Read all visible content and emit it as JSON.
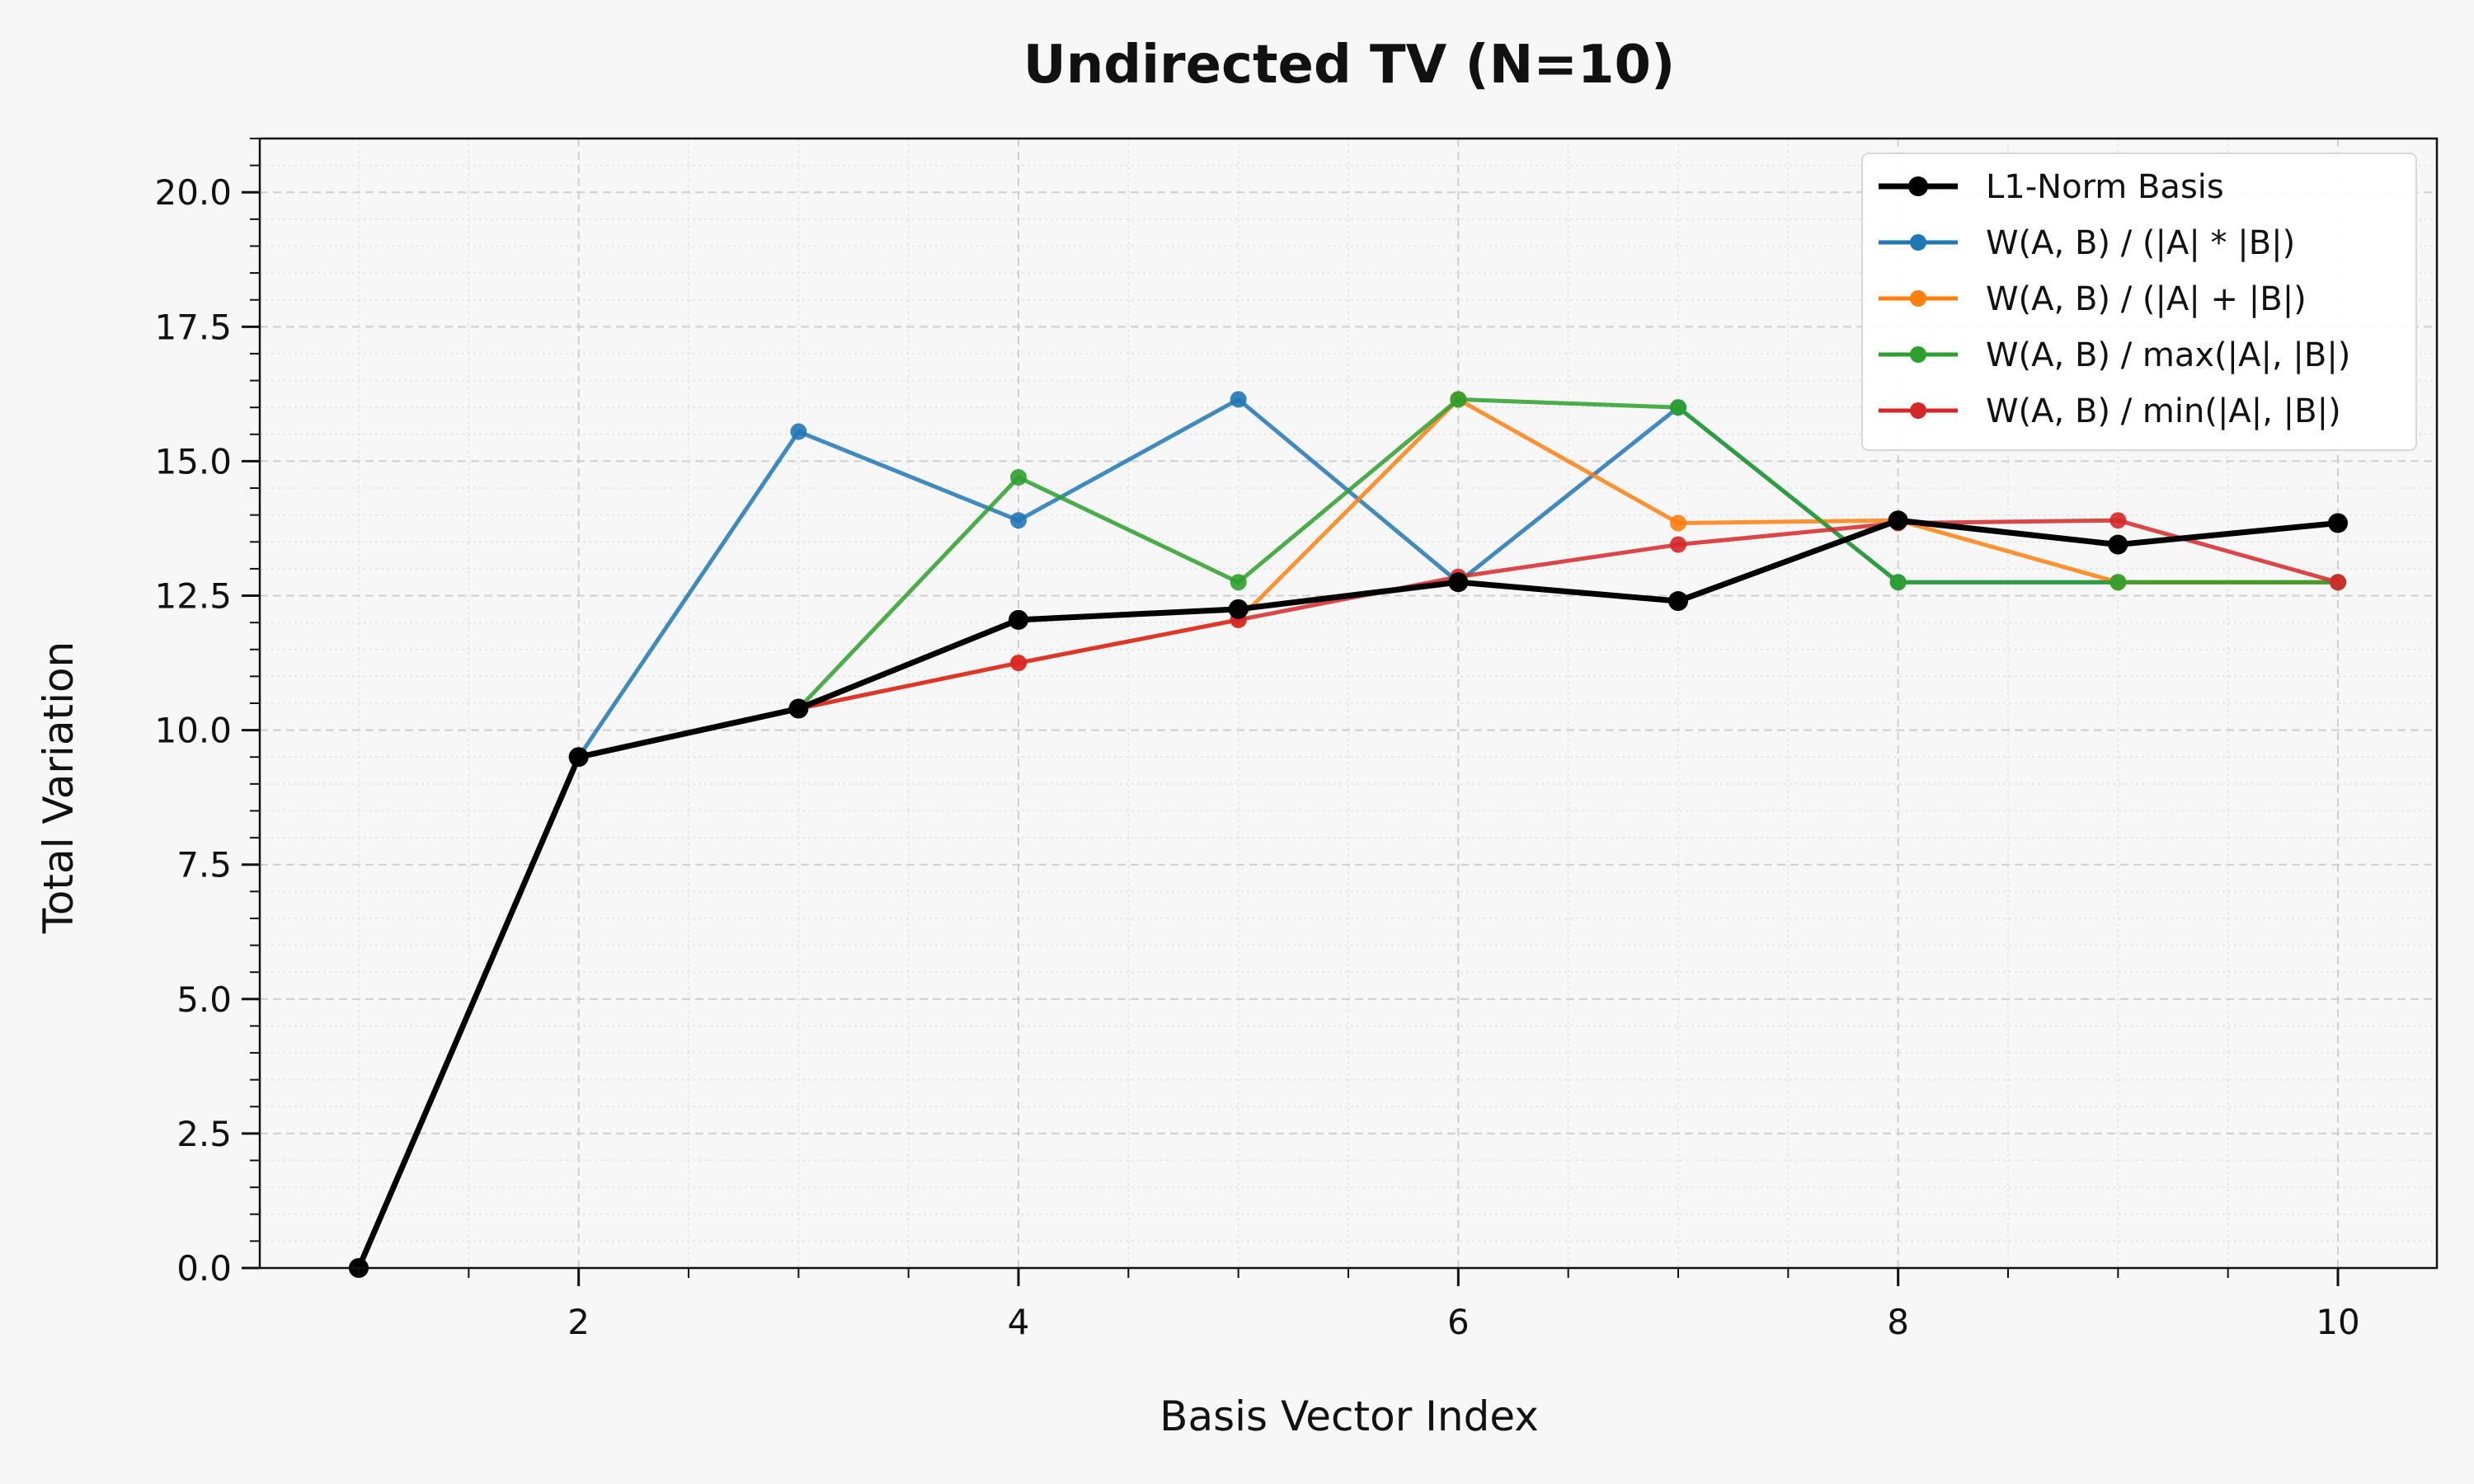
{
  "chart_data": {
    "type": "line",
    "title": "Undirected TV (N=10)",
    "xlabel": "Basis Vector Index",
    "ylabel": "Total Variation",
    "xlim": [
      0.55,
      10.45
    ],
    "ylim": [
      0,
      21
    ],
    "x": [
      1,
      2,
      3,
      4,
      5,
      6,
      7,
      8,
      9,
      10
    ],
    "x_ticks": [
      2,
      4,
      6,
      8,
      10
    ],
    "x_tick_labels": [
      "2",
      "4",
      "6",
      "8",
      "10"
    ],
    "y_ticks": [
      0,
      2.5,
      5,
      7.5,
      10,
      12.5,
      15,
      17.5,
      20
    ],
    "y_tick_labels": [
      "0.0",
      "2.5",
      "5.0",
      "7.5",
      "10.0",
      "12.5",
      "15.0",
      "17.5",
      "20.0"
    ],
    "grid": true,
    "legend_position": "top-right",
    "series": [
      {
        "name": "W(A, B) / (|A| * |B|)",
        "color": "#1f77b4",
        "values": [
          0,
          9.5,
          15.55,
          13.9,
          16.15,
          12.75,
          16.0,
          12.75,
          12.75,
          12.75
        ]
      },
      {
        "name": "W(A, B) / (|A| + |B|)",
        "color": "#ff7f0e",
        "values": [
          0,
          9.5,
          10.4,
          11.25,
          12.05,
          16.15,
          13.85,
          13.9,
          12.75,
          12.75
        ]
      },
      {
        "name": "W(A, B) / max(|A|, |B|)",
        "color": "#2ca02c",
        "values": [
          0,
          9.5,
          10.4,
          14.7,
          12.75,
          16.15,
          16.0,
          12.75,
          12.75,
          12.75
        ]
      },
      {
        "name": "W(A, B) / min(|A|, |B|)",
        "color": "#d62728",
        "values": [
          0,
          9.5,
          10.4,
          11.25,
          12.05,
          12.85,
          13.45,
          13.85,
          13.9,
          12.75
        ]
      },
      {
        "name": "L1-Norm Basis",
        "color": "#000000",
        "values": [
          0,
          9.5,
          10.4,
          12.05,
          12.25,
          12.75,
          12.4,
          13.9,
          13.45,
          13.85
        ]
      }
    ],
    "legend_order": [
      4,
      0,
      1,
      2,
      3
    ]
  }
}
